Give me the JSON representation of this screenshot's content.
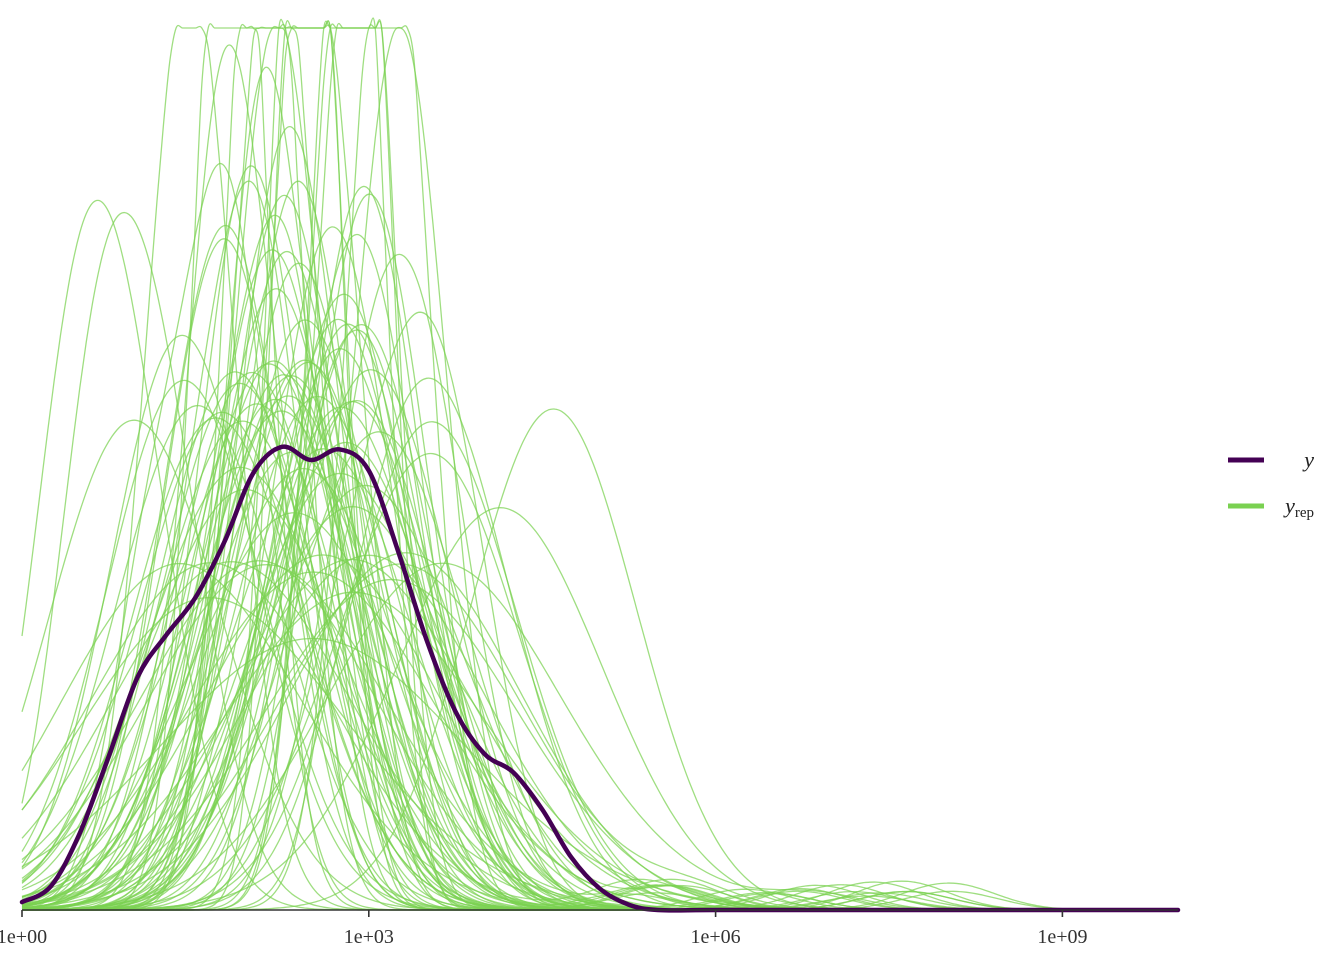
{
  "chart_data": {
    "type": "line",
    "title": "",
    "xlabel": "",
    "ylabel": "",
    "x_scale": "log10",
    "xlim": [
      1,
      10000000000
    ],
    "ylim": [
      0,
      0.34
    ],
    "x_ticks": [
      {
        "value": 1,
        "label": "1e+00"
      },
      {
        "value": 1000,
        "label": "1e+03"
      },
      {
        "value": 1000000,
        "label": "1e+06"
      },
      {
        "value": 1000000000,
        "label": "1e+09"
      }
    ],
    "grid": false,
    "legend_position": "right",
    "legend": [
      {
        "key": "y",
        "label": "y",
        "color": "#440154"
      },
      {
        "key": "yrep",
        "label": "y",
        "subscript": "rep",
        "color": "#7AD151"
      }
    ],
    "series": [
      {
        "name": "y",
        "color": "#440154",
        "x": [
          1,
          1.78,
          3.16,
          5.62,
          10,
          17.8,
          31.6,
          56.2,
          100,
          178,
          316,
          562,
          1000,
          1778,
          3162,
          5623,
          10000,
          17780,
          31620,
          56230,
          100000,
          177800,
          316200,
          1000000,
          10000000,
          100000000,
          1000000000,
          10000000000
        ],
        "y": [
          0.003,
          0.009,
          0.029,
          0.058,
          0.088,
          0.104,
          0.118,
          0.139,
          0.165,
          0.175,
          0.17,
          0.174,
          0.166,
          0.136,
          0.102,
          0.075,
          0.059,
          0.052,
          0.038,
          0.02,
          0.008,
          0.002,
          0,
          0,
          0,
          0,
          0,
          0
        ]
      }
    ],
    "yrep_draws": 100,
    "yrep_color": "#7AD151"
  }
}
